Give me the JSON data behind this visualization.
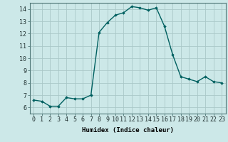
{
  "x": [
    0,
    1,
    2,
    3,
    4,
    5,
    6,
    7,
    8,
    9,
    10,
    11,
    12,
    13,
    14,
    15,
    16,
    17,
    18,
    19,
    20,
    21,
    22,
    23
  ],
  "y": [
    6.6,
    6.5,
    6.1,
    6.1,
    6.8,
    6.7,
    6.7,
    7.0,
    12.1,
    12.9,
    13.5,
    13.7,
    14.2,
    14.1,
    13.9,
    14.1,
    12.6,
    10.3,
    8.5,
    8.3,
    8.1,
    8.5,
    8.1,
    8.0
  ],
  "line_color": "#006060",
  "marker": "D",
  "marker_size": 1.8,
  "bg_color": "#cce8e8",
  "grid_color": "#aac8c8",
  "xlabel": "Humidex (Indice chaleur)",
  "xlim": [
    -0.5,
    23.5
  ],
  "ylim": [
    5.5,
    14.5
  ],
  "yticks": [
    6,
    7,
    8,
    9,
    10,
    11,
    12,
    13,
    14
  ],
  "xticks": [
    0,
    1,
    2,
    3,
    4,
    5,
    6,
    7,
    8,
    9,
    10,
    11,
    12,
    13,
    14,
    15,
    16,
    17,
    18,
    19,
    20,
    21,
    22,
    23
  ],
  "xlabel_fontsize": 6.5,
  "tick_fontsize": 6.0,
  "linewidth": 1.0
}
